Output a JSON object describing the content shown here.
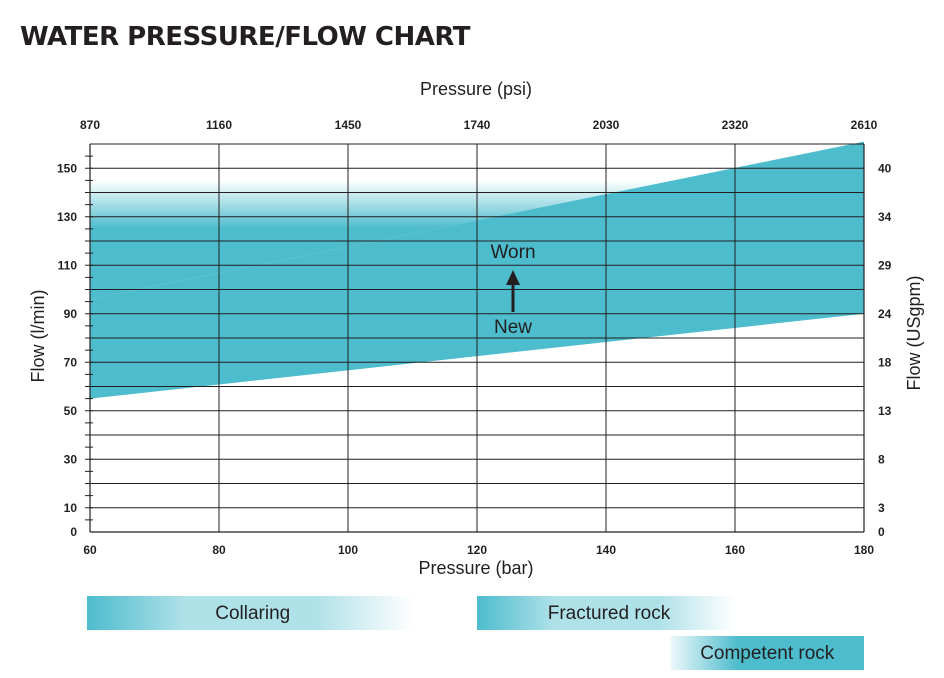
{
  "chart_data": {
    "type": "area",
    "title": "WATER PRESSURE/FLOW CHART",
    "xlabel": "Pressure (bar)",
    "x2label": "Pressure (psi)",
    "ylabel": "Flow (l/min)",
    "y2label": "Flow (USgpm)",
    "x_ticks": [
      60,
      80,
      100,
      120,
      140,
      160,
      180
    ],
    "x2_ticks": [
      "870",
      "1160",
      "1450",
      "1740",
      "2030",
      "2320",
      "2610"
    ],
    "y_ticks": [
      0,
      10,
      30,
      50,
      70,
      90,
      110,
      130,
      150
    ],
    "y2_ticks": [
      "0",
      "3",
      "8",
      "13",
      "18",
      "24",
      "29",
      "34",
      "40"
    ],
    "xlim": [
      60,
      180
    ],
    "ylim": [
      0,
      160
    ],
    "grid": true,
    "series": [
      {
        "name": "New",
        "x": [
          60,
          180
        ],
        "y": [
          55,
          90
        ]
      },
      {
        "name": "Worn",
        "x": [
          60,
          180
        ],
        "y": [
          96,
          161
        ]
      }
    ],
    "annotations": {
      "worn": "Worn",
      "new": "New"
    },
    "bands": [
      {
        "label": "Collaring",
        "x_start": 60,
        "x_end": 110,
        "row": 0,
        "fade": "both"
      },
      {
        "label": "Fractured rock",
        "x_start": 120,
        "x_end": 160,
        "row": 0,
        "fade": "both"
      },
      {
        "label": "Competent rock",
        "x_start": 150,
        "x_end": 180,
        "row": 1,
        "fade": "left"
      }
    ],
    "colors": {
      "fill": "#4dbccd",
      "grid": "#231f20"
    }
  }
}
